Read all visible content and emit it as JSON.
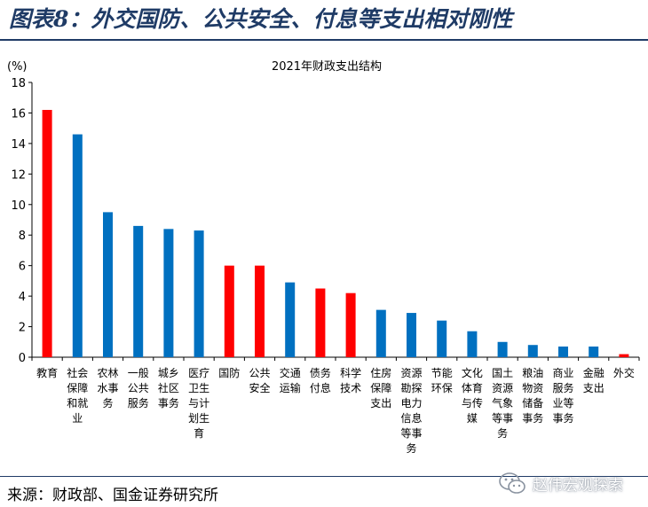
{
  "figure_title": "图表8：外交国防、公共安全、付息等支出相对刚性",
  "source": "来源：财政部、国金证券研究所",
  "watermark": {
    "text": "赵伟宏观探索",
    "icon": "wechat-icon"
  },
  "colors": {
    "highlight": "#ff0000",
    "normal": "#0070c0",
    "header": "#1f3b66"
  },
  "chart_data": {
    "type": "bar",
    "title": "2021年财政支出结构",
    "ylabel": "(%)",
    "xlabel": "",
    "ylim": [
      0,
      18
    ],
    "yticks": [
      0,
      2,
      4,
      6,
      8,
      10,
      12,
      14,
      16,
      18
    ],
    "grid": false,
    "categories": [
      "教育",
      "社会保障和就业",
      "农林水事务",
      "一般公共服务",
      "城乡社区事务",
      "医疗卫生与计划生育",
      "国防",
      "公共安全",
      "交通运输",
      "债务付息",
      "科学技术",
      "住房保障支出",
      "资源勘探电力信息等事务",
      "节能环保",
      "文化体育与传媒",
      "国土资源气象等事务",
      "粮油物资储备事务",
      "商业服务业等事务",
      "金融支出",
      "外交"
    ],
    "category_lines": [
      [
        "教育"
      ],
      [
        "社会",
        "保障",
        "和就",
        "业"
      ],
      [
        "农林",
        "水事",
        "务"
      ],
      [
        "一般",
        "公共",
        "服务"
      ],
      [
        "城乡",
        "社区",
        "事务"
      ],
      [
        "医疗",
        "卫生",
        "与计",
        "划生",
        "育"
      ],
      [
        "国防"
      ],
      [
        "公共",
        "安全"
      ],
      [
        "交通",
        "运输"
      ],
      [
        "债务",
        "付息"
      ],
      [
        "科学",
        "技术"
      ],
      [
        "住房",
        "保障",
        "支出"
      ],
      [
        "资源",
        "勘探",
        "电力",
        "信息",
        "等事",
        "务"
      ],
      [
        "节能",
        "环保"
      ],
      [
        "文化",
        "体育",
        "与传",
        "媒"
      ],
      [
        "国土",
        "资源",
        "气象",
        "等事",
        "务"
      ],
      [
        "粮油",
        "物资",
        "储备",
        "事务"
      ],
      [
        "商业",
        "服务",
        "业等",
        "事务"
      ],
      [
        "金融",
        "支出"
      ],
      [
        "外交"
      ]
    ],
    "values": [
      16.2,
      14.6,
      9.5,
      8.6,
      8.4,
      8.3,
      6.0,
      6.0,
      4.9,
      4.5,
      4.2,
      3.1,
      2.9,
      2.4,
      1.7,
      1.0,
      0.8,
      0.7,
      0.7,
      0.2
    ],
    "highlighted": [
      true,
      false,
      false,
      false,
      false,
      false,
      true,
      true,
      false,
      true,
      true,
      false,
      false,
      false,
      false,
      false,
      false,
      false,
      false,
      true
    ]
  }
}
